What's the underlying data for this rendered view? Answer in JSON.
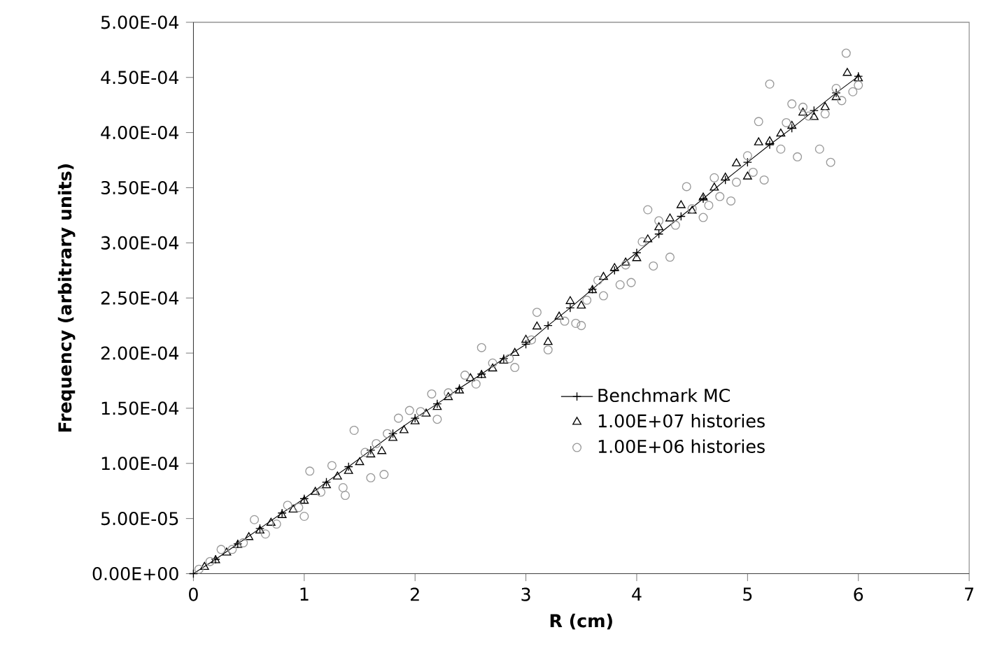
{
  "chart_data": {
    "type": "scatter",
    "xlabel": "R (cm)",
    "ylabel": "Frequency (arbitrary units)",
    "xlim": [
      0,
      7
    ],
    "xticks": [
      0,
      1,
      2,
      3,
      4,
      5,
      6,
      7
    ],
    "ylim": [
      0,
      0.0005
    ],
    "yticks": [
      {
        "value": 0,
        "label": "0.00E+00"
      },
      {
        "value": 5e-05,
        "label": "5.00E-05"
      },
      {
        "value": 0.0001,
        "label": "1.00E-04"
      },
      {
        "value": 0.00015,
        "label": "1.50E-04"
      },
      {
        "value": 0.0002,
        "label": "2.00E-04"
      },
      {
        "value": 0.00025,
        "label": "2.50E-04"
      },
      {
        "value": 0.0003,
        "label": "3.00E-04"
      },
      {
        "value": 0.00035,
        "label": "3.50E-04"
      },
      {
        "value": 0.0004,
        "label": "4.00E-04"
      },
      {
        "value": 0.00045,
        "label": "4.50E-04"
      },
      {
        "value": 0.0005,
        "label": "5.00E-04"
      }
    ],
    "legend": "bottom right",
    "grid": false,
    "series": [
      {
        "name": "Benchmark MC",
        "type": "line",
        "marker": "cross",
        "color": "#000000",
        "x": [
          0,
          0.2,
          0.4,
          0.6,
          0.8,
          1.0,
          1.2,
          1.4,
          1.6,
          1.8,
          2.0,
          2.2,
          2.4,
          2.6,
          2.8,
          3.0,
          3.2,
          3.4,
          3.6,
          3.8,
          4.0,
          4.2,
          4.4,
          4.6,
          4.8,
          5.0,
          5.2,
          5.4,
          5.6,
          5.8,
          6.0
        ],
        "values": [
          0,
          1.3e-05,
          2.7e-05,
          4.1e-05,
          5.5e-05,
          6.8e-05,
          8.3e-05,
          9.7e-05,
          0.000112,
          0.000127,
          0.000141,
          0.000154,
          0.000168,
          0.000181,
          0.000195,
          0.000208,
          0.000225,
          0.000241,
          0.000258,
          0.000275,
          0.000291,
          0.000308,
          0.000324,
          0.00034,
          0.000357,
          0.000373,
          0.000389,
          0.000404,
          0.00042,
          0.000436,
          0.000451
        ]
      },
      {
        "name": "1.00E+07 histories",
        "marker": "triangle",
        "color": "#000000",
        "x": [
          0.1,
          0.2,
          0.3,
          0.4,
          0.5,
          0.6,
          0.7,
          0.8,
          0.9,
          1.0,
          1.1,
          1.2,
          1.3,
          1.4,
          1.5,
          1.6,
          1.7,
          1.8,
          1.9,
          2.0,
          2.1,
          2.2,
          2.3,
          2.4,
          2.5,
          2.6,
          2.7,
          2.8,
          2.9,
          3.0,
          3.1,
          3.2,
          3.3,
          3.4,
          3.5,
          3.6,
          3.7,
          3.8,
          3.9,
          4.0,
          4.1,
          4.2,
          4.3,
          4.4,
          4.5,
          4.6,
          4.7,
          4.8,
          4.9,
          5.0,
          5.1,
          5.2,
          5.3,
          5.4,
          5.5,
          5.6,
          5.7,
          5.8,
          5.9,
          6.0
        ],
        "values": [
          6e-06,
          1.2e-05,
          1.9e-05,
          2.6e-05,
          3.3e-05,
          3.9e-05,
          4.6e-05,
          5.3e-05,
          5.8e-05,
          6.6e-05,
          7.4e-05,
          8e-05,
          8.8e-05,
          9.3e-05,
          0.000101,
          0.000108,
          0.000111,
          0.000123,
          0.00013,
          0.000138,
          0.000145,
          0.000151,
          0.00016,
          0.000166,
          0.000177,
          0.00018,
          0.000186,
          0.000193,
          0.0002,
          0.000212,
          0.000224,
          0.00021,
          0.000233,
          0.000247,
          0.000243,
          0.000257,
          0.000269,
          0.000277,
          0.000282,
          0.000286,
          0.000303,
          0.000314,
          0.000322,
          0.000334,
          0.000329,
          0.000341,
          0.00035,
          0.000359,
          0.000372,
          0.00036,
          0.000391,
          0.000392,
          0.000399,
          0.000406,
          0.000418,
          0.000414,
          0.000423,
          0.000432,
          0.000454,
          0.000449
        ]
      },
      {
        "name": "1.00E+06 histories",
        "marker": "circle",
        "color": "#999999",
        "x": [
          0.05,
          0.15,
          0.25,
          0.35,
          0.45,
          0.55,
          0.65,
          0.75,
          0.85,
          0.95,
          1.0,
          1.05,
          1.15,
          1.25,
          1.35,
          1.37,
          1.45,
          1.55,
          1.6,
          1.65,
          1.72,
          1.75,
          1.85,
          1.95,
          2.05,
          2.15,
          2.2,
          2.3,
          2.45,
          2.55,
          2.6,
          2.7,
          2.85,
          2.9,
          3.05,
          3.1,
          3.2,
          3.35,
          3.45,
          3.5,
          3.55,
          3.65,
          3.7,
          3.85,
          3.9,
          3.95,
          4.05,
          4.1,
          4.15,
          4.2,
          4.3,
          4.35,
          4.45,
          4.5,
          4.6,
          4.65,
          4.7,
          4.75,
          4.85,
          4.9,
          5.0,
          5.05,
          5.1,
          5.15,
          5.2,
          5.3,
          5.35,
          5.4,
          5.45,
          5.5,
          5.55,
          5.65,
          5.7,
          5.75,
          5.8,
          5.85,
          5.89,
          5.95,
          6.0
        ],
        "values": [
          4e-06,
          1.1e-05,
          2.2e-05,
          2.2e-05,
          2.8e-05,
          4.9e-05,
          3.6e-05,
          4.5e-05,
          6.2e-05,
          6e-05,
          5.2e-05,
          9.3e-05,
          7.4e-05,
          9.8e-05,
          7.8e-05,
          7.1e-05,
          0.00013,
          0.00011,
          8.7e-05,
          0.000118,
          9e-05,
          0.000127,
          0.000141,
          0.000148,
          0.000147,
          0.000163,
          0.00014,
          0.000164,
          0.00018,
          0.000172,
          0.000205,
          0.000191,
          0.000195,
          0.000187,
          0.000212,
          0.000237,
          0.000203,
          0.000229,
          0.000227,
          0.000225,
          0.000248,
          0.000266,
          0.000252,
          0.000262,
          0.00028,
          0.000264,
          0.000301,
          0.00033,
          0.000279,
          0.00032,
          0.000287,
          0.000316,
          0.000351,
          0.000331,
          0.000323,
          0.000334,
          0.000359,
          0.000342,
          0.000338,
          0.000355,
          0.000379,
          0.000364,
          0.00041,
          0.000357,
          0.000444,
          0.000385,
          0.000409,
          0.000426,
          0.000378,
          0.000423,
          0.000415,
          0.000385,
          0.000417,
          0.000373,
          0.00044,
          0.000429,
          0.000472,
          0.000437,
          0.000443
        ]
      }
    ]
  }
}
